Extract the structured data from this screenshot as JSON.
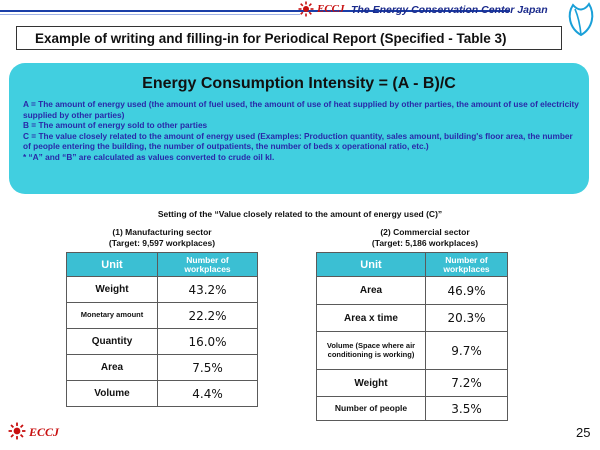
{
  "header": {
    "logo_text": "ECCJ",
    "org_name": "The Energy Conservation Center Japan"
  },
  "title": "Example of writing and filling-in for Periodical Report (Specified - Table 3)",
  "intensity": {
    "formula": "Energy Consumption Intensity = (A - B)/C",
    "definitions": [
      "A = The amount of energy used (the amount of fuel used, the amount of use of heat supplied by other parties, the amount of use of electricity supplied by other parties)",
      "B = The amount of energy sold to other parties",
      "C = The value closely related to the amount of energy used (Examples: Production quantity, sales amount, building's floor area, the number of people entering the building, the number of outpatients, the number of beds x operational ratio, etc.)",
      "* “A” and “B” are calculated as values converted to crude oil kl."
    ]
  },
  "setting_title": "Setting of the “Value closely related to the amount of energy used (C)”",
  "manufacturing": {
    "title_line1": "(1) Manufacturing sector",
    "title_line2": "(Target: 9,597 workplaces)",
    "col_unit": "Unit",
    "col_num_line1": "Number of",
    "col_num_line2": "workplaces",
    "rows": [
      {
        "unit": "Weight",
        "pct": "43.2%"
      },
      {
        "unit": "Monetary amount",
        "pct": "22.2%"
      },
      {
        "unit": "Quantity",
        "pct": "16.0%"
      },
      {
        "unit": "Area",
        "pct": "7.5%"
      },
      {
        "unit": "Volume",
        "pct": "4.4%"
      }
    ]
  },
  "commercial": {
    "title_line1": "(2) Commercial sector",
    "title_line2": "(Target: 5,186 workplaces)",
    "col_unit": "Unit",
    "col_num_line1": "Number of",
    "col_num_line2": "workplaces",
    "rows": [
      {
        "unit": "Area",
        "pct": "46.9%"
      },
      {
        "unit": "Area x time",
        "pct": "20.3%"
      },
      {
        "unit": "Volume (Space where air conditioning is working)",
        "pct": "9.7%"
      },
      {
        "unit": "Weight",
        "pct": "7.2%"
      },
      {
        "unit": "Number of people",
        "pct": "3.5%"
      }
    ]
  },
  "footer": {
    "logo_text": "ECCJ",
    "page_number": "25"
  },
  "colors": {
    "accent_cyan": "#41cfe0",
    "header_blue": "#1a3ea8",
    "brand_red": "#c81010",
    "definition_text": "#2929a8"
  }
}
